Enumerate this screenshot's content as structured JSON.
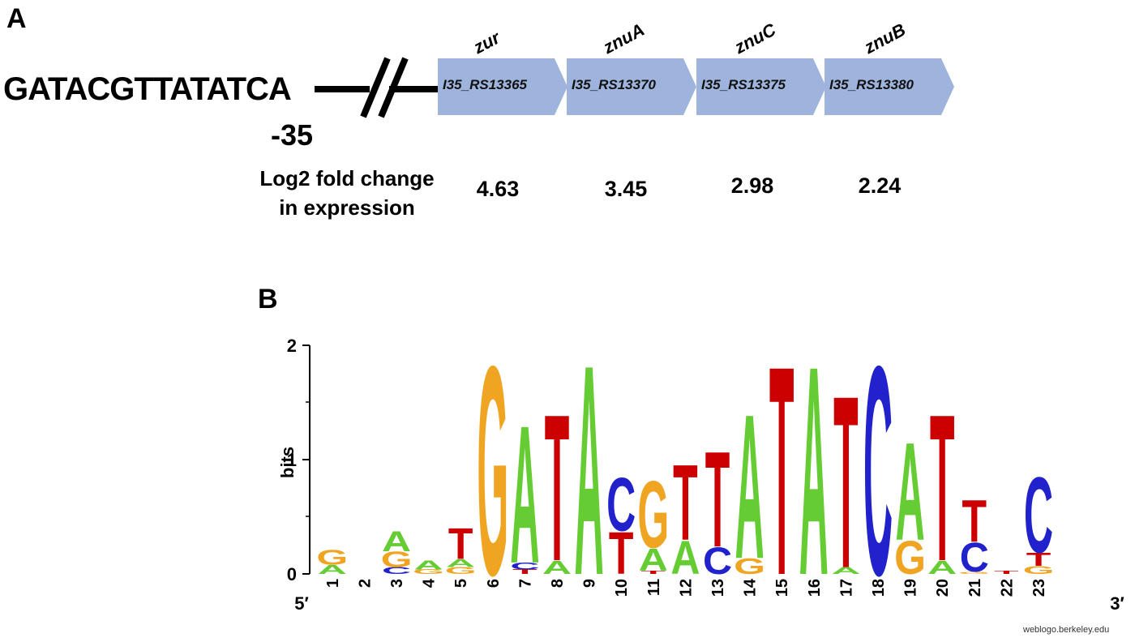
{
  "panel_a": {
    "label": "A",
    "sequence": "GATACGTTATATCA",
    "position": "-35",
    "fold_change_label_line1": "Log2 fold change",
    "fold_change_label_line2": "in expression",
    "genes": [
      {
        "name": "zur",
        "locus": "I35_RS13365",
        "log2fc": "4.63"
      },
      {
        "name": "znuA",
        "locus": "I35_RS13370",
        "log2fc": "3.45"
      },
      {
        "name": "znuC",
        "locus": "I35_RS13375",
        "log2fc": "2.98"
      },
      {
        "name": "znuB",
        "locus": "I35_RS13380",
        "log2fc": "2.24"
      }
    ],
    "arrow_color": "#9fb4dd"
  },
  "panel_b": {
    "label": "B",
    "ylabel": "bits",
    "ymax_label": "2",
    "ymid_label": "1",
    "ymin_label": "0",
    "end5": "5′",
    "end3": "3′",
    "credit": "weblogo.berkeley.edu",
    "colors": {
      "A": "#66cc33",
      "C": "#2222cc",
      "G": "#f0a522",
      "T": "#cc0000"
    }
  },
  "chart_data": {
    "type": "sequence-logo",
    "title": "",
    "xlabel": "",
    "ylabel": "bits",
    "ylim": [
      0,
      2
    ],
    "positions": [
      {
        "pos": "1",
        "letters": [
          {
            "base": "G",
            "bits": 0.13
          },
          {
            "base": "A",
            "bits": 0.08
          }
        ]
      },
      {
        "pos": "2",
        "letters": []
      },
      {
        "pos": "3",
        "letters": [
          {
            "base": "A",
            "bits": 0.18
          },
          {
            "base": "G",
            "bits": 0.14
          },
          {
            "base": "C",
            "bits": 0.06
          }
        ]
      },
      {
        "pos": "4",
        "letters": [
          {
            "base": "A",
            "bits": 0.08
          },
          {
            "base": "G",
            "bits": 0.04
          }
        ]
      },
      {
        "pos": "5",
        "letters": [
          {
            "base": "T",
            "bits": 0.28
          },
          {
            "base": "A",
            "bits": 0.07
          },
          {
            "base": "G",
            "bits": 0.06
          }
        ]
      },
      {
        "pos": "6",
        "letters": [
          {
            "base": "G",
            "bits": 1.88
          }
        ]
      },
      {
        "pos": "7",
        "letters": [
          {
            "base": "A",
            "bits": 1.24
          },
          {
            "base": "C",
            "bits": 0.06
          },
          {
            "base": "T",
            "bits": 0.04
          }
        ]
      },
      {
        "pos": "8",
        "letters": [
          {
            "base": "T",
            "bits": 1.32
          },
          {
            "base": "A",
            "bits": 0.12
          }
        ]
      },
      {
        "pos": "9",
        "letters": [
          {
            "base": "A",
            "bits": 1.89
          }
        ]
      },
      {
        "pos": "10",
        "letters": [
          {
            "base": "C",
            "bits": 0.48
          },
          {
            "base": "T",
            "bits": 0.38
          }
        ]
      },
      {
        "pos": "11",
        "letters": [
          {
            "base": "G",
            "bits": 0.6
          },
          {
            "base": "A",
            "bits": 0.2
          },
          {
            "base": "T",
            "bits": 0.03
          }
        ]
      },
      {
        "pos": "12",
        "letters": [
          {
            "base": "T",
            "bits": 0.68
          },
          {
            "base": "A",
            "bits": 0.3
          }
        ]
      },
      {
        "pos": "13",
        "letters": [
          {
            "base": "T",
            "bits": 0.86
          },
          {
            "base": "C",
            "bits": 0.24
          }
        ]
      },
      {
        "pos": "14",
        "letters": [
          {
            "base": "A",
            "bits": 1.3
          },
          {
            "base": "G",
            "bits": 0.14
          }
        ]
      },
      {
        "pos": "15",
        "letters": [
          {
            "base": "T",
            "bits": 1.88
          }
        ]
      },
      {
        "pos": "16",
        "letters": [
          {
            "base": "A",
            "bits": 1.88
          }
        ]
      },
      {
        "pos": "17",
        "letters": [
          {
            "base": "T",
            "bits": 1.55
          },
          {
            "base": "A",
            "bits": 0.06
          }
        ]
      },
      {
        "pos": "18",
        "letters": [
          {
            "base": "C",
            "bits": 1.88
          }
        ]
      },
      {
        "pos": "19",
        "letters": [
          {
            "base": "A",
            "bits": 0.88
          },
          {
            "base": "G",
            "bits": 0.3
          }
        ]
      },
      {
        "pos": "20",
        "letters": [
          {
            "base": "T",
            "bits": 1.32
          },
          {
            "base": "A",
            "bits": 0.12
          }
        ]
      },
      {
        "pos": "21",
        "letters": [
          {
            "base": "T",
            "bits": 0.38
          },
          {
            "base": "C",
            "bits": 0.26
          },
          {
            "base": "G",
            "bits": 0.02
          }
        ]
      },
      {
        "pos": "22",
        "letters": [
          {
            "base": "T",
            "bits": 0.03
          }
        ]
      },
      {
        "pos": "23",
        "letters": [
          {
            "base": "C",
            "bits": 0.68
          },
          {
            "base": "T",
            "bits": 0.12
          },
          {
            "base": "G",
            "bits": 0.07
          }
        ]
      }
    ]
  }
}
